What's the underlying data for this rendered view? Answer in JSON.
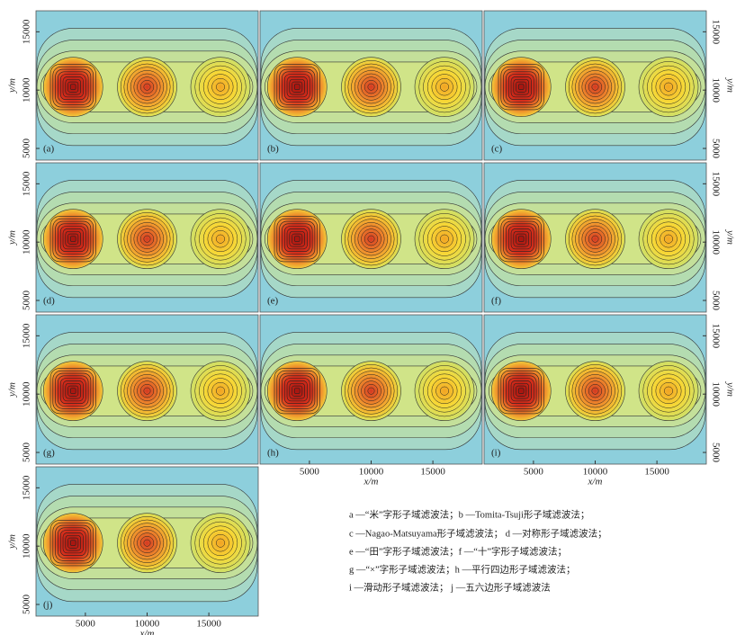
{
  "chart_data": [
    {
      "type": "contour",
      "label": "(a)",
      "ylabel": "y/m",
      "yaxis_side": "left",
      "ylim": [
        4000,
        16800
      ],
      "yticks": [
        5000,
        10000,
        15000
      ]
    },
    {
      "type": "contour",
      "label": "(b)"
    },
    {
      "type": "contour",
      "label": "(c)",
      "ylabel": "y/m",
      "yaxis_side": "right",
      "ylim": [
        4000,
        16800
      ],
      "yticks": [
        5000,
        10000,
        15000
      ]
    },
    {
      "type": "contour",
      "label": "(d)",
      "ylabel": "y/m",
      "yaxis_side": "left",
      "ylim": [
        4000,
        16800
      ],
      "yticks": [
        5000,
        10000,
        15000
      ]
    },
    {
      "type": "contour",
      "label": "(e)"
    },
    {
      "type": "contour",
      "label": "(f)",
      "ylabel": "y/m",
      "yaxis_side": "right",
      "ylim": [
        4000,
        16800
      ],
      "yticks": [
        5000,
        10000,
        15000
      ]
    },
    {
      "type": "contour",
      "label": "(g)",
      "ylabel": "y/m",
      "yaxis_side": "left",
      "ylim": [
        4000,
        16800
      ],
      "yticks": [
        5000,
        10000,
        15000
      ]
    },
    {
      "type": "contour",
      "label": "(h)",
      "xlabel": "x/m",
      "xlim": [
        1000,
        19000
      ],
      "xticks": [
        5000,
        10000,
        15000
      ]
    },
    {
      "type": "contour",
      "label": "(i)",
      "ylabel": "y/m",
      "yaxis_side": "right",
      "ylim": [
        4000,
        16800
      ],
      "yticks": [
        5000,
        10000,
        15000
      ],
      "xlabel": "x/m",
      "xlim": [
        1000,
        19000
      ],
      "xticks": [
        5000,
        10000,
        15000
      ]
    },
    {
      "type": "contour",
      "label": "(j)",
      "ylabel": "y/m",
      "yaxis_side": "left",
      "ylim": [
        4000,
        16800
      ],
      "yticks": [
        5000,
        10000,
        15000
      ],
      "xlabel": "x/m",
      "xlim": [
        1000,
        19000
      ],
      "xticks": [
        5000,
        10000,
        15000
      ]
    }
  ],
  "caption": [
    "a —“米”字形子域滤波法；b —Tomita-Tsuji形子域滤波法；",
    "c —Nagao-Matsuyama形子域滤波法；  d —对称形子域滤波法；",
    "e —“田”字形子域滤波法；f —“十”字形子域滤波法；",
    "g —“×”字形子域滤波法；h —平行四边形子域滤波法；",
    "i —滑动形子域滤波法；  j —五六边形子域滤波法"
  ]
}
